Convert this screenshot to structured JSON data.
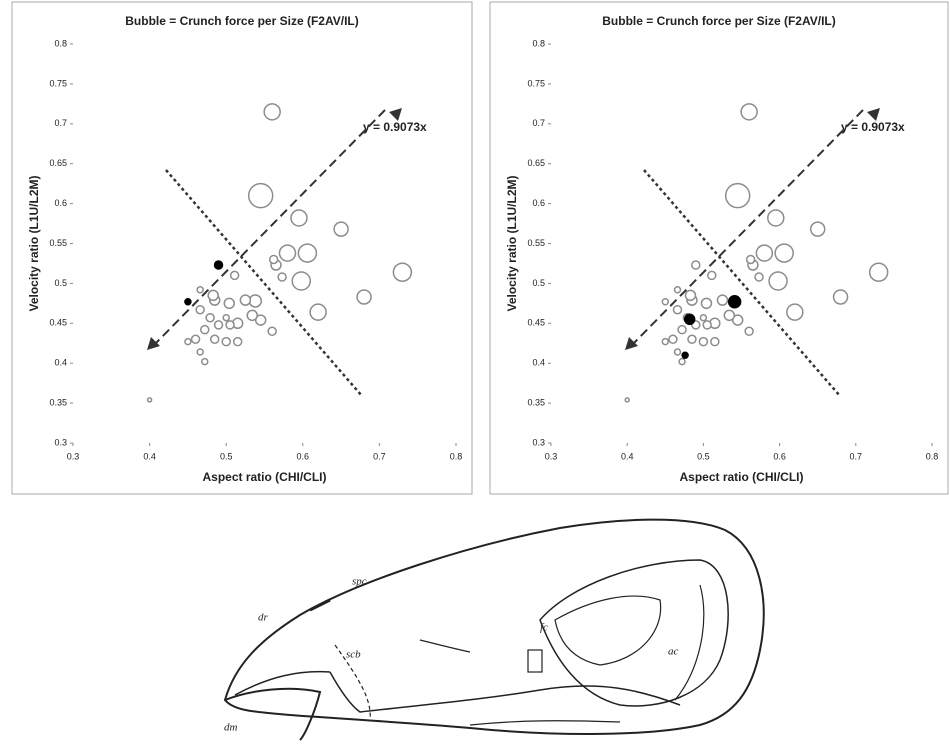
{
  "chart_data": [
    {
      "type": "scatter",
      "title": "Bubble = Crunch force per Size (F2AV/IL)",
      "x_label": "Aspect ratio (CHI/CLI)",
      "y_label": "Velocity ratio (L1U/L2M)",
      "annotation": "y = 0.9073x",
      "xlim": [
        0.3,
        0.8
      ],
      "xticks": [
        0.3,
        0.4,
        0.5,
        0.6,
        0.7,
        0.8
      ],
      "ylim": [
        0.3,
        0.8
      ],
      "yticks": [
        0.3,
        0.35,
        0.4,
        0.45,
        0.5,
        0.55,
        0.6,
        0.65,
        0.7,
        0.75,
        0.8
      ],
      "series": [
        {
          "color": "#8c8c8c",
          "fill": "#ffffff",
          "x": [
            0.56,
            0.545,
            0.595,
            0.65,
            0.73,
            0.68,
            0.62,
            0.598,
            0.606,
            0.58,
            0.565,
            0.562,
            0.573,
            0.545,
            0.56,
            0.538,
            0.525,
            0.511,
            0.515,
            0.534,
            0.515,
            0.5,
            0.485,
            0.466,
            0.483,
            0.504,
            0.479,
            0.466,
            0.472,
            0.49,
            0.505,
            0.485,
            0.45,
            0.46,
            0.466,
            0.472,
            0.4,
            0.5
          ],
          "values": [
            0.715,
            0.61,
            0.582,
            0.568,
            0.514,
            0.483,
            0.464,
            0.503,
            0.538,
            0.538,
            0.523,
            0.53,
            0.508,
            0.454,
            0.44,
            0.478,
            0.479,
            0.51,
            0.45,
            0.46,
            0.427,
            0.427,
            0.479,
            0.492,
            0.485,
            0.475,
            0.457,
            0.467,
            0.442,
            0.448,
            0.448,
            0.43,
            0.427,
            0.43,
            0.414,
            0.402,
            0.354,
            0.457
          ],
          "sizes": [
            8,
            12,
            8,
            7,
            9,
            7,
            8,
            9,
            9,
            8,
            5,
            4,
            4,
            5,
            4,
            6,
            5,
            4,
            5,
            5,
            4,
            4,
            5,
            3,
            5,
            5,
            4,
            4,
            4,
            4,
            4,
            4,
            3,
            4,
            3,
            3,
            2,
            3
          ]
        },
        {
          "color": "#000000",
          "fill": "#000000",
          "x": [
            0.49,
            0.45
          ],
          "values": [
            0.523,
            0.477
          ],
          "sizes": [
            4,
            3
          ]
        }
      ]
    },
    {
      "type": "scatter",
      "title": "Bubble = Crunch force per Size (F2AV/IL)",
      "x_label": "Aspect ratio (CHI/CLI)",
      "y_label": "Velocity ratio (L1U/L2M)",
      "annotation": "y = 0.9073x",
      "xlim": [
        0.3,
        0.8
      ],
      "xticks": [
        0.3,
        0.4,
        0.5,
        0.6,
        0.7,
        0.8
      ],
      "ylim": [
        0.3,
        0.8
      ],
      "yticks": [
        0.3,
        0.35,
        0.4,
        0.45,
        0.5,
        0.55,
        0.6,
        0.65,
        0.7,
        0.75,
        0.8
      ],
      "series": [
        {
          "color": "#8c8c8c",
          "fill": "#ffffff",
          "x": [
            0.56,
            0.545,
            0.595,
            0.65,
            0.73,
            0.68,
            0.62,
            0.598,
            0.606,
            0.58,
            0.565,
            0.562,
            0.573,
            0.545,
            0.56,
            0.525,
            0.511,
            0.515,
            0.534,
            0.515,
            0.5,
            0.485,
            0.466,
            0.483,
            0.504,
            0.479,
            0.466,
            0.472,
            0.49,
            0.505,
            0.485,
            0.45,
            0.46,
            0.466,
            0.472,
            0.4,
            0.5,
            0.49,
            0.45
          ],
          "values": [
            0.715,
            0.61,
            0.582,
            0.568,
            0.514,
            0.483,
            0.464,
            0.503,
            0.538,
            0.538,
            0.523,
            0.53,
            0.508,
            0.454,
            0.44,
            0.479,
            0.51,
            0.45,
            0.46,
            0.427,
            0.427,
            0.479,
            0.492,
            0.485,
            0.475,
            0.457,
            0.467,
            0.442,
            0.448,
            0.448,
            0.43,
            0.427,
            0.43,
            0.414,
            0.402,
            0.354,
            0.457,
            0.523,
            0.477
          ],
          "sizes": [
            8,
            12,
            8,
            7,
            9,
            7,
            8,
            9,
            9,
            8,
            5,
            4,
            4,
            5,
            4,
            5,
            4,
            5,
            5,
            4,
            4,
            5,
            3,
            5,
            5,
            4,
            4,
            4,
            4,
            4,
            4,
            3,
            4,
            3,
            3,
            2,
            3,
            4,
            3
          ]
        },
        {
          "color": "#000000",
          "fill": "#000000",
          "x": [
            0.541,
            0.482,
            0.476
          ],
          "values": [
            0.477,
            0.455,
            0.41
          ],
          "sizes": [
            6,
            5,
            3
          ]
        }
      ]
    }
  ],
  "drawing": {
    "labels": [
      "dr",
      "spc",
      "scb",
      "fc",
      "ac",
      "dm"
    ]
  }
}
